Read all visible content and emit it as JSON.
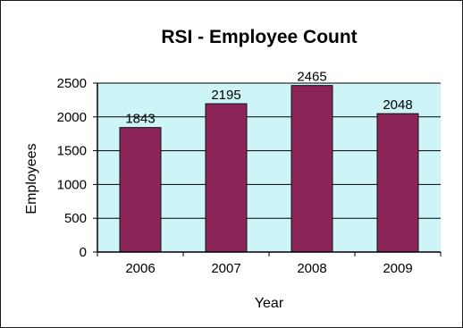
{
  "chart_data": {
    "type": "bar",
    "title": "RSI - Employee Count",
    "xlabel": "Year",
    "ylabel": "Employees",
    "categories": [
      "2006",
      "2007",
      "2008",
      "2009"
    ],
    "values": [
      1843,
      2195,
      2465,
      2048
    ],
    "data_labels": [
      "1843",
      "2195",
      "2465",
      "2048"
    ],
    "ylim": [
      0,
      2500
    ],
    "yticks": [
      "0",
      "500",
      "1000",
      "1500",
      "2000",
      "2500"
    ],
    "grid": true,
    "legend": "none",
    "colors": {
      "bar": "#8b2456",
      "bar_edge": "#111111",
      "plot_background": "#cdf4f7",
      "gridline": "#000000"
    }
  }
}
